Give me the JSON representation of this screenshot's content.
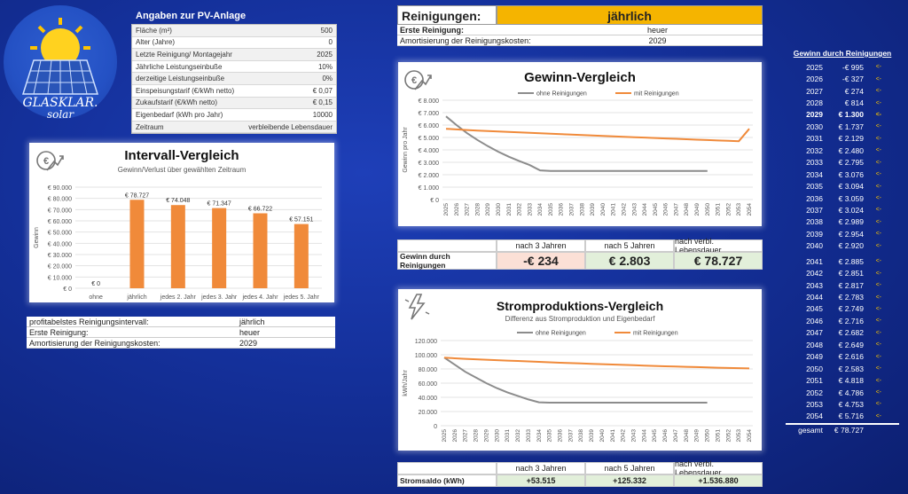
{
  "logo": {
    "line1": "GLASKLAR.",
    "line2": "solar"
  },
  "pv": {
    "title": "Angaben zur PV-Anlage",
    "rows": [
      {
        "label": "Fläche (m²)",
        "value": "500"
      },
      {
        "label": "Alter (Jahre)",
        "value": "0"
      },
      {
        "label": "Letzte Reinigung/ Montagejahr",
        "value": "2025"
      },
      {
        "label": "Jährliche Leistungseinbuße",
        "value": "10%"
      },
      {
        "label": "derzeitige Leistungseinbuße",
        "value": "0%"
      },
      {
        "label": "Einspeisungstarif (€/kWh netto)",
        "value": "€ 0,07"
      },
      {
        "label": "Zukaufstarif (€/kWh netto)",
        "value": "€ 0,15"
      },
      {
        "label": "Eigenbedarf (kWh pro Jahr)",
        "value": "10000"
      },
      {
        "label": "Zeitraum",
        "value": "verbleibende Lebensdauer"
      }
    ]
  },
  "reinigungen": {
    "label": "Reinigungen:",
    "value": "jährlich",
    "rows": [
      {
        "label": "Erste Reinigung:",
        "value": "heuer"
      },
      {
        "label": "Amortisierung der Reinigungskosten:",
        "value": "2029"
      }
    ]
  },
  "intervall": {
    "title": "Intervall-Vergleich",
    "subtitle": "Gewinn/Verlust über gewählten Zeitraum",
    "info": [
      {
        "label": "profitabelstes Reinigungsintervall:",
        "value": "jährlich"
      },
      {
        "label": "Erste Reinigung:",
        "value": "heuer"
      },
      {
        "label": "Amortisierung der Reinigungskosten:",
        "value": "2029"
      }
    ]
  },
  "gewinn": {
    "title": "Gewinn-Vergleich",
    "summary": {
      "headers": [
        "nach 3 Jahren",
        "nach 5 Jahren",
        "nach verbl. Lebensdauer"
      ],
      "label": "Gewinn durch Reinigungen",
      "values": [
        "-€ 234",
        "€ 2.803",
        "€ 78.727"
      ]
    }
  },
  "strom": {
    "title": "Stromproduktions-Vergleich",
    "subtitle": "Differenz aus Stromproduktion und Eigenbedarf",
    "summary": {
      "headers": [
        "nach 3 Jahren",
        "nach 5 Jahren",
        "nach verbl. Lebensdauer"
      ],
      "label": "Stromsaldo (kWh)",
      "values": [
        "+53.515",
        "+125.332",
        "+1.536.880"
      ]
    }
  },
  "right": {
    "title": "Gewinn durch Reinigungen",
    "rows": [
      {
        "year": "2025",
        "value": "-€ 995"
      },
      {
        "year": "2026",
        "value": "-€ 327"
      },
      {
        "year": "2027",
        "value": "€ 274"
      },
      {
        "year": "2028",
        "value": "€ 814"
      },
      {
        "year": "2029",
        "value": "€ 1.300"
      },
      {
        "year": "2030",
        "value": "€ 1.737"
      },
      {
        "year": "2031",
        "value": "€ 2.129"
      },
      {
        "year": "2032",
        "value": "€ 2.480"
      },
      {
        "year": "2033",
        "value": "€ 2.795"
      },
      {
        "year": "2034",
        "value": "€ 3.076"
      },
      {
        "year": "2035",
        "value": "€ 3.094"
      },
      {
        "year": "2036",
        "value": "€ 3.059"
      },
      {
        "year": "2037",
        "value": "€ 3.024"
      },
      {
        "year": "2038",
        "value": "€ 2.989"
      },
      {
        "year": "2039",
        "value": "€ 2.954"
      },
      {
        "year": "2040",
        "value": "€ 2.920"
      },
      {
        "year": "2041",
        "value": "€ 2.885"
      },
      {
        "year": "2042",
        "value": "€ 2.851"
      },
      {
        "year": "2043",
        "value": "€ 2.817"
      },
      {
        "year": "2044",
        "value": "€ 2.783"
      },
      {
        "year": "2045",
        "value": "€ 2.749"
      },
      {
        "year": "2046",
        "value": "€ 2.716"
      },
      {
        "year": "2047",
        "value": "€ 2.682"
      },
      {
        "year": "2048",
        "value": "€ 2.649"
      },
      {
        "year": "2049",
        "value": "€ 2.616"
      },
      {
        "year": "2050",
        "value": "€ 2.583"
      },
      {
        "year": "2051",
        "value": "€ 4.818"
      },
      {
        "year": "2052",
        "value": "€ 4.786"
      },
      {
        "year": "2053",
        "value": "€ 4.753"
      },
      {
        "year": "2054",
        "value": "€ 5.716"
      }
    ],
    "total_label": "gesamt",
    "total_value": "€ 78.727",
    "arrow": "<-",
    "highlight_year": "2029"
  },
  "colors": {
    "orange": "#f08a3a",
    "gray": "#8c8c8c",
    "gold": "#f5b400",
    "green": "#e2efda",
    "red": "#fbe0d6"
  },
  "chart_data": [
    {
      "type": "bar",
      "categories": [
        "ohne",
        "jährlich",
        "jedes 2. Jahr",
        "jedes 3. Jahr",
        "jedes 4. Jahr",
        "jedes 5. Jahr"
      ],
      "values": [
        0,
        78727,
        74048,
        71347,
        66722,
        57151
      ],
      "value_labels": [
        "€ 0",
        "€ 78.727",
        "€ 74.048",
        "€ 71.347",
        "€ 66.722",
        "€ 57.151"
      ],
      "ylabel": "Gewinn",
      "ylim": [
        0,
        90000
      ],
      "yticks": [
        "€ 0",
        "€ 10.000",
        "€ 20.000",
        "€ 30.000",
        "€ 40.000",
        "€ 50.000",
        "€ 60.000",
        "€ 70.000",
        "€ 80.000",
        "€ 90.000"
      ],
      "grid": true
    },
    {
      "type": "line",
      "x": [
        "2025",
        "2026",
        "2027",
        "2028",
        "2029",
        "2030",
        "2031",
        "2032",
        "2033",
        "2034",
        "2035",
        "2036",
        "2037",
        "2038",
        "2039",
        "2040",
        "2041",
        "2042",
        "2043",
        "2044",
        "2045",
        "2046",
        "2047",
        "2048",
        "2049",
        "2050",
        "2051",
        "2052",
        "2053",
        "2054"
      ],
      "series": [
        {
          "name": "ohne Reinigungen",
          "values": [
            6700,
            6000,
            5350,
            4800,
            4300,
            3850,
            3450,
            3100,
            2780,
            2350,
            2300,
            2300,
            2300,
            2300,
            2300,
            2300,
            2300,
            2300,
            2300,
            2300,
            2300,
            2300,
            2300,
            2300,
            2300,
            2300,
            null,
            null,
            null,
            null
          ]
        },
        {
          "name": "mit Reinigungen",
          "values": [
            5700,
            5650,
            5600,
            5560,
            5520,
            5480,
            5450,
            5410,
            5380,
            5340,
            5300,
            5270,
            5230,
            5200,
            5160,
            5130,
            5090,
            5060,
            5020,
            4990,
            4960,
            4920,
            4890,
            4860,
            4820,
            4790,
            4760,
            4730,
            4700,
            5700
          ]
        }
      ],
      "ylabel": "Gewinn pro Jahr",
      "ylim": [
        0,
        8000
      ],
      "yticks": [
        "€ 0",
        "€ 1.000",
        "€ 2.000",
        "€ 3.000",
        "€ 4.000",
        "€ 5.000",
        "€ 6.000",
        "€ 7.000",
        "€ 8.000"
      ],
      "legend": "top-center",
      "grid": true
    },
    {
      "type": "line",
      "x": [
        "2025",
        "2026",
        "2027",
        "2028",
        "2029",
        "2030",
        "2031",
        "2032",
        "2033",
        "2034",
        "2035",
        "2036",
        "2037",
        "2038",
        "2039",
        "2040",
        "2041",
        "2042",
        "2043",
        "2044",
        "2045",
        "2046",
        "2047",
        "2048",
        "2049",
        "2050",
        "2051",
        "2052",
        "2053",
        "2054"
      ],
      "series": [
        {
          "name": "ohne Reinigungen",
          "values": [
            96000,
            86000,
            76000,
            68000,
            60000,
            53000,
            47000,
            42000,
            37000,
            33000,
            32500,
            32500,
            32500,
            32500,
            32500,
            32500,
            32500,
            32500,
            32500,
            32500,
            32500,
            32500,
            32500,
            32500,
            32500,
            32500,
            null,
            null,
            null,
            null
          ]
        },
        {
          "name": "mit Reinigungen",
          "values": [
            96000,
            95000,
            94200,
            93600,
            93000,
            92400,
            91800,
            91200,
            90600,
            90000,
            89400,
            88800,
            88200,
            87700,
            87200,
            86700,
            86200,
            85700,
            85200,
            84700,
            84200,
            83800,
            83400,
            83000,
            82600,
            82200,
            81800,
            81400,
            81100,
            80800
          ]
        }
      ],
      "ylabel": "kWh/Jahr",
      "ylim": [
        0,
        120000
      ],
      "yticks": [
        "0",
        "20.000",
        "40.000",
        "60.000",
        "80.000",
        "100.000",
        "120.000"
      ],
      "legend": "top-center",
      "grid": true
    }
  ]
}
